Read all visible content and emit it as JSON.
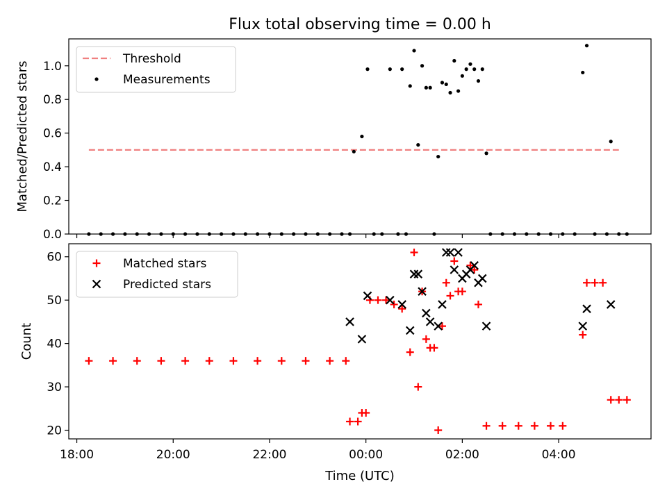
{
  "chart_data": [
    {
      "type": "scatter",
      "title": "Flux total observing time = 0.00 h",
      "ylabel": "Matched/Predicted stars",
      "xlabel": "",
      "xlim": [
        "17:50",
        "05:55"
      ],
      "ylim": [
        0,
        1.16
      ],
      "xticks": [
        "18:00",
        "20:00",
        "22:00",
        "00:00",
        "02:00",
        "04:00"
      ],
      "yticks": [
        "0.0",
        "0.2",
        "0.4",
        "0.6",
        "0.8",
        "1.0"
      ],
      "legend": {
        "position": "top-left",
        "entries": [
          "Threshold",
          "Measurements"
        ]
      },
      "series": [
        {
          "name": "Threshold",
          "style": "dashed-line",
          "color": "#f08080",
          "points": [
            [
              "18:15",
              0.5
            ],
            [
              "05:15",
              0.5
            ]
          ]
        },
        {
          "name": "Measurements",
          "style": "dot",
          "color": "#000000",
          "points": [
            [
              "23:45",
              0.49
            ],
            [
              "23:55",
              0.58
            ],
            [
              "00:02",
              0.98
            ],
            [
              "00:30",
              0.98
            ],
            [
              "00:45",
              0.98
            ],
            [
              "00:55",
              0.88
            ],
            [
              "01:00",
              1.09
            ],
            [
              "01:05",
              0.53
            ],
            [
              "01:10",
              1.0
            ],
            [
              "01:15",
              0.87
            ],
            [
              "01:20",
              0.87
            ],
            [
              "01:30",
              0.46
            ],
            [
              "01:35",
              0.9
            ],
            [
              "01:40",
              0.89
            ],
            [
              "01:45",
              0.84
            ],
            [
              "01:50",
              1.03
            ],
            [
              "01:55",
              0.85
            ],
            [
              "02:00",
              0.94
            ],
            [
              "02:05",
              0.98
            ],
            [
              "02:10",
              1.01
            ],
            [
              "02:15",
              0.98
            ],
            [
              "02:20",
              0.91
            ],
            [
              "02:25",
              0.98
            ],
            [
              "02:30",
              0.48
            ],
            [
              "04:30",
              0.96
            ],
            [
              "04:35",
              1.12
            ],
            [
              "05:05",
              0.55
            ],
            [
              "18:15",
              0.0
            ],
            [
              "18:30",
              0.0
            ],
            [
              "18:45",
              0.0
            ],
            [
              "19:00",
              0.0
            ],
            [
              "19:15",
              0.0
            ],
            [
              "19:30",
              0.0
            ],
            [
              "19:45",
              0.0
            ],
            [
              "20:00",
              0.0
            ],
            [
              "20:15",
              0.0
            ],
            [
              "20:30",
              0.0
            ],
            [
              "20:45",
              0.0
            ],
            [
              "21:00",
              0.0
            ],
            [
              "21:15",
              0.0
            ],
            [
              "21:30",
              0.0
            ],
            [
              "21:45",
              0.0
            ],
            [
              "22:00",
              0.0
            ],
            [
              "22:15",
              0.0
            ],
            [
              "22:30",
              0.0
            ],
            [
              "22:45",
              0.0
            ],
            [
              "23:00",
              0.0
            ],
            [
              "23:15",
              0.0
            ],
            [
              "23:30",
              0.0
            ],
            [
              "23:40",
              0.0
            ],
            [
              "00:10",
              0.0
            ],
            [
              "00:20",
              0.0
            ],
            [
              "00:40",
              0.0
            ],
            [
              "00:50",
              0.0
            ],
            [
              "01:25",
              0.0
            ],
            [
              "02:35",
              0.0
            ],
            [
              "02:50",
              0.0
            ],
            [
              "03:05",
              0.0
            ],
            [
              "03:20",
              0.0
            ],
            [
              "03:35",
              0.0
            ],
            [
              "03:50",
              0.0
            ],
            [
              "04:05",
              0.0
            ],
            [
              "04:20",
              0.0
            ],
            [
              "04:45",
              0.0
            ],
            [
              "05:00",
              0.0
            ],
            [
              "05:15",
              0.0
            ],
            [
              "05:25",
              0.0
            ]
          ]
        }
      ]
    },
    {
      "type": "scatter",
      "title": "",
      "ylabel": "Count",
      "xlabel": "Time (UTC)",
      "xlim": [
        "17:50",
        "05:55"
      ],
      "ylim": [
        18,
        63
      ],
      "xticks": [
        "18:00",
        "20:00",
        "22:00",
        "00:00",
        "02:00",
        "04:00"
      ],
      "yticks": [
        "20",
        "30",
        "40",
        "50",
        "60"
      ],
      "legend": {
        "position": "top-left",
        "entries": [
          "Matched stars",
          "Predicted stars"
        ]
      },
      "series": [
        {
          "name": "Matched stars",
          "style": "plus",
          "color": "#ff0000",
          "points": [
            [
              "18:15",
              36
            ],
            [
              "18:45",
              36
            ],
            [
              "19:15",
              36
            ],
            [
              "19:45",
              36
            ],
            [
              "20:15",
              36
            ],
            [
              "20:45",
              36
            ],
            [
              "21:15",
              36
            ],
            [
              "21:45",
              36
            ],
            [
              "22:15",
              36
            ],
            [
              "22:45",
              36
            ],
            [
              "23:15",
              36
            ],
            [
              "23:35",
              36
            ],
            [
              "23:40",
              22
            ],
            [
              "23:50",
              22
            ],
            [
              "23:55",
              24
            ],
            [
              "00:00",
              24
            ],
            [
              "00:05",
              50
            ],
            [
              "00:15",
              50
            ],
            [
              "00:25",
              50
            ],
            [
              "00:35",
              49
            ],
            [
              "00:45",
              48
            ],
            [
              "00:55",
              38
            ],
            [
              "01:00",
              61
            ],
            [
              "01:05",
              30
            ],
            [
              "01:10",
              52
            ],
            [
              "01:15",
              41
            ],
            [
              "01:20",
              39
            ],
            [
              "01:25",
              39
            ],
            [
              "01:30",
              20
            ],
            [
              "01:35",
              44
            ],
            [
              "01:40",
              54
            ],
            [
              "01:45",
              51
            ],
            [
              "01:50",
              59
            ],
            [
              "01:55",
              52
            ],
            [
              "02:00",
              52
            ],
            [
              "02:10",
              58
            ],
            [
              "02:15",
              57
            ],
            [
              "02:20",
              49
            ],
            [
              "02:30",
              21
            ],
            [
              "02:50",
              21
            ],
            [
              "03:10",
              21
            ],
            [
              "03:30",
              21
            ],
            [
              "03:50",
              21
            ],
            [
              "04:05",
              21
            ],
            [
              "04:30",
              42
            ],
            [
              "04:35",
              54
            ],
            [
              "04:45",
              54
            ],
            [
              "04:55",
              54
            ],
            [
              "05:05",
              27
            ],
            [
              "05:15",
              27
            ],
            [
              "05:25",
              27
            ]
          ]
        },
        {
          "name": "Predicted stars",
          "style": "x",
          "color": "#000000",
          "points": [
            [
              "23:40",
              45
            ],
            [
              "23:55",
              41
            ],
            [
              "00:02",
              51
            ],
            [
              "00:30",
              50
            ],
            [
              "00:45",
              49
            ],
            [
              "00:55",
              43
            ],
            [
              "01:00",
              56
            ],
            [
              "01:05",
              56
            ],
            [
              "01:10",
              52
            ],
            [
              "01:15",
              47
            ],
            [
              "01:20",
              45
            ],
            [
              "01:30",
              44
            ],
            [
              "01:35",
              49
            ],
            [
              "01:40",
              61
            ],
            [
              "01:45",
              61
            ],
            [
              "01:50",
              57
            ],
            [
              "01:55",
              61
            ],
            [
              "02:00",
              55
            ],
            [
              "02:05",
              56
            ],
            [
              "02:10",
              57
            ],
            [
              "02:15",
              58
            ],
            [
              "02:20",
              54
            ],
            [
              "02:25",
              55
            ],
            [
              "02:30",
              44
            ],
            [
              "04:30",
              44
            ],
            [
              "04:35",
              48
            ],
            [
              "05:05",
              49
            ]
          ]
        }
      ]
    }
  ]
}
